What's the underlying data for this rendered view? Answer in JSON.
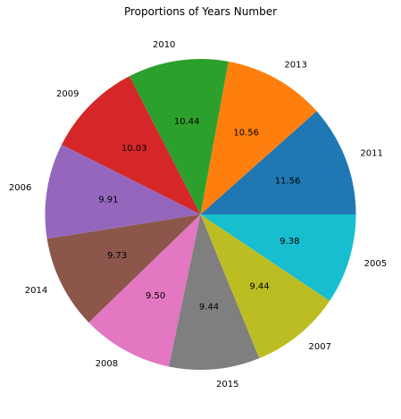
{
  "chart_data": {
    "type": "pie",
    "title": "Proportions of Years Number",
    "start_angle_deg": 0,
    "direction": "counterclockwise",
    "slices": [
      {
        "label": "2011",
        "value": 11.56,
        "display": "11.56",
        "color": "#1f77b4"
      },
      {
        "label": "2013",
        "value": 10.56,
        "display": "10.56",
        "color": "#ff7f0e"
      },
      {
        "label": "2010",
        "value": 10.44,
        "display": "10.44",
        "color": "#2ca02c"
      },
      {
        "label": "2009",
        "value": 10.03,
        "display": "10.03",
        "color": "#d62728"
      },
      {
        "label": "2006",
        "value": 9.91,
        "display": "9.91",
        "color": "#9467bd"
      },
      {
        "label": "2014",
        "value": 9.73,
        "display": "9.73",
        "color": "#8c564b"
      },
      {
        "label": "2008",
        "value": 9.5,
        "display": "9.50",
        "color": "#e377c2"
      },
      {
        "label": "2015",
        "value": 9.44,
        "display": "9.44",
        "color": "#7f7f7f"
      },
      {
        "label": "2007",
        "value": 9.44,
        "display": "9.44",
        "color": "#bcbd22"
      },
      {
        "label": "2005",
        "value": 9.38,
        "display": "9.38",
        "color": "#17becf"
      }
    ]
  }
}
